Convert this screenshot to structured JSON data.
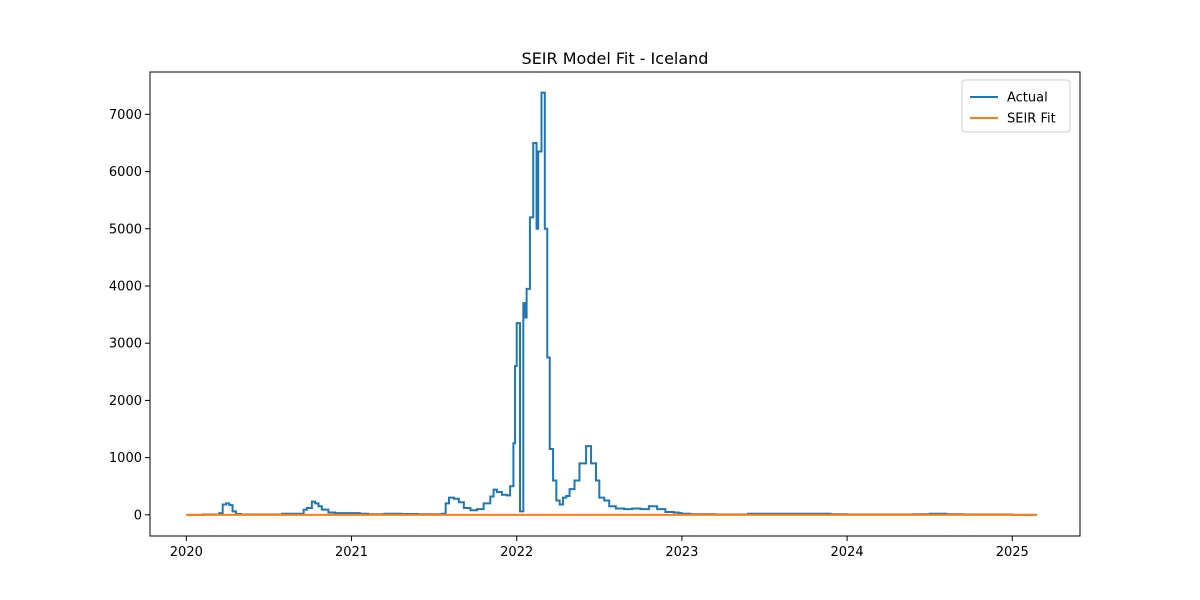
{
  "chart_data": {
    "type": "line",
    "title": "SEIR Model Fit - Iceland",
    "xlabel": "",
    "ylabel": "",
    "x_ticks": [
      "2020",
      "2021",
      "2022",
      "2023",
      "2024",
      "2025"
    ],
    "y_ticks": [
      "0",
      "1000",
      "2000",
      "3000",
      "4000",
      "5000",
      "6000",
      "7000"
    ],
    "xlim": [
      2019.78,
      2025.41
    ],
    "ylim": [
      -370,
      7740
    ],
    "legend_position": "top-right",
    "series": [
      {
        "name": "Actual",
        "color": "#1f77b4",
        "x": [
          2020.0,
          2020.1,
          2020.2,
          2020.22,
          2020.24,
          2020.26,
          2020.28,
          2020.3,
          2020.33,
          2020.4,
          2020.5,
          2020.58,
          2020.6,
          2020.7,
          2020.71,
          2020.73,
          2020.76,
          2020.78,
          2020.8,
          2020.82,
          2020.86,
          2020.9,
          2021.0,
          2021.05,
          2021.1,
          2021.2,
          2021.3,
          2021.4,
          2021.5,
          2021.55,
          2021.57,
          2021.59,
          2021.62,
          2021.65,
          2021.68,
          2021.72,
          2021.76,
          2021.8,
          2021.84,
          2021.86,
          2021.88,
          2021.91,
          2021.94,
          2021.96,
          2021.98,
          2021.99,
          2022.0,
          2022.02,
          2022.04,
          2022.045,
          2022.05,
          2022.06,
          2022.08,
          2022.1,
          2022.12,
          2022.13,
          2022.15,
          2022.17,
          2022.185,
          2022.2,
          2022.22,
          2022.24,
          2022.26,
          2022.28,
          2022.3,
          2022.32,
          2022.35,
          2022.38,
          2022.42,
          2022.45,
          2022.48,
          2022.5,
          2022.53,
          2022.56,
          2022.6,
          2022.65,
          2022.7,
          2022.75,
          2022.8,
          2022.85,
          2022.9,
          2022.95,
          2022.98,
          2023.0,
          2023.05,
          2023.1,
          2023.2,
          2023.3,
          2023.4,
          2023.5,
          2023.6,
          2023.7,
          2023.8,
          2023.9,
          2024.0,
          2024.1,
          2024.2,
          2024.3,
          2024.4,
          2024.5,
          2024.6,
          2024.7,
          2024.8,
          2024.9,
          2025.0,
          2025.15
        ],
        "y": [
          0,
          5,
          30,
          180,
          200,
          170,
          60,
          15,
          5,
          5,
          5,
          20,
          20,
          20,
          90,
          120,
          230,
          200,
          150,
          90,
          40,
          30,
          30,
          20,
          10,
          20,
          15,
          10,
          10,
          20,
          200,
          300,
          280,
          220,
          120,
          80,
          100,
          200,
          320,
          440,
          400,
          350,
          340,
          500,
          1250,
          2600,
          3350,
          60,
          3700,
          3700,
          3450,
          3950,
          5200,
          6500,
          5000,
          6350,
          7380,
          5000,
          2750,
          1150,
          600,
          250,
          180,
          300,
          330,
          450,
          600,
          900,
          1200,
          900,
          600,
          300,
          250,
          150,
          110,
          100,
          110,
          100,
          150,
          100,
          50,
          40,
          30,
          20,
          10,
          10,
          5,
          5,
          20,
          20,
          20,
          20,
          20,
          10,
          5,
          5,
          5,
          5,
          10,
          20,
          10,
          5,
          5,
          5,
          0,
          0
        ]
      },
      {
        "name": "SEIR Fit",
        "color": "#ff7f0e",
        "x": [
          2020.0,
          2025.15
        ],
        "y": [
          0,
          0
        ]
      }
    ]
  }
}
